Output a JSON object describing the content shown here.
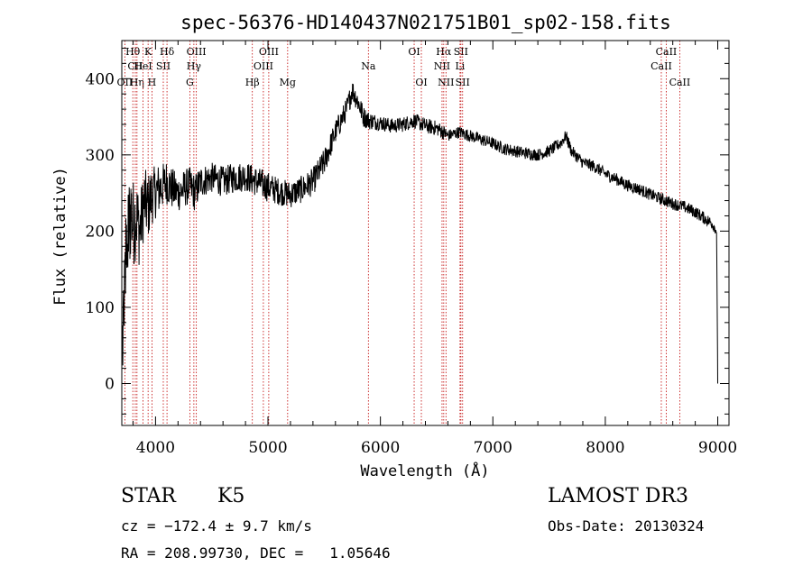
{
  "chart_data": {
    "type": "line",
    "title": "spec-56376-HD140437N021751B01_sp02-158.fits",
    "xlabel": "Wavelength (Å)",
    "ylabel": "Flux (relative)",
    "xlim": [
      3700,
      9100
    ],
    "ylim": [
      -55,
      450
    ],
    "xticks": [
      4000,
      5000,
      6000,
      7000,
      8000,
      9000
    ],
    "yticks": [
      0,
      100,
      200,
      300,
      400
    ],
    "spectrum": {
      "x": [
        3700,
        3720,
        3740,
        3760,
        3780,
        3800,
        3830,
        3860,
        3900,
        3930,
        3960,
        3990,
        4030,
        4070,
        4100,
        4150,
        4200,
        4250,
        4300,
        4350,
        4400,
        4500,
        4600,
        4700,
        4800,
        4900,
        5000,
        5100,
        5200,
        5300,
        5400,
        5500,
        5600,
        5700,
        5750,
        5800,
        5850,
        5900,
        6000,
        6100,
        6200,
        6300,
        6400,
        6500,
        6560,
        6600,
        6700,
        6800,
        6900,
        7000,
        7100,
        7200,
        7300,
        7400,
        7500,
        7600,
        7650,
        7700,
        7800,
        7900,
        8000,
        8100,
        8200,
        8300,
        8400,
        8500,
        8600,
        8700,
        8800,
        8900,
        8950,
        8990,
        9000
      ],
      "y": [
        30,
        110,
        170,
        200,
        230,
        210,
        220,
        200,
        240,
        230,
        245,
        250,
        255,
        260,
        265,
        255,
        250,
        255,
        260,
        250,
        265,
        270,
        265,
        270,
        272,
        265,
        258,
        252,
        248,
        255,
        265,
        290,
        330,
        360,
        385,
        370,
        350,
        345,
        342,
        338,
        340,
        345,
        338,
        335,
        330,
        325,
        330,
        325,
        320,
        315,
        308,
        305,
        302,
        300,
        305,
        315,
        325,
        305,
        290,
        285,
        275,
        268,
        260,
        255,
        248,
        242,
        236,
        232,
        225,
        215,
        210,
        200,
        0
      ],
      "noise": [
        60,
        70,
        70,
        70,
        70,
        60,
        55,
        50,
        45,
        45,
        40,
        35,
        35,
        30,
        30,
        28,
        25,
        25,
        25,
        25,
        22,
        20,
        20,
        20,
        20,
        20,
        20,
        18,
        18,
        18,
        18,
        18,
        16,
        15,
        15,
        15,
        14,
        12,
        10,
        10,
        10,
        10,
        10,
        10,
        10,
        8,
        8,
        8,
        8,
        8,
        8,
        8,
        8,
        8,
        8,
        8,
        8,
        8,
        8,
        8,
        8,
        8,
        8,
        8,
        8,
        8,
        8,
        8,
        8,
        8,
        8,
        6,
        0
      ]
    },
    "line_markers": [
      {
        "label": "Hθ",
        "wavelength": 3798,
        "row": 1
      },
      {
        "label": "CII",
        "wavelength": 3820,
        "row": 2
      },
      {
        "label": "OII",
        "wavelength": 3727,
        "row": 3
      },
      {
        "label": "Hη",
        "wavelength": 3835,
        "row": 3
      },
      {
        "label": "K",
        "wavelength": 3934,
        "row": 1
      },
      {
        "label": "HeI",
        "wavelength": 3889,
        "row": 2
      },
      {
        "label": "SII",
        "wavelength": 4069,
        "row": 2
      },
      {
        "label": "H",
        "wavelength": 3968,
        "row": 3
      },
      {
        "label": "Hδ",
        "wavelength": 4102,
        "row": 1
      },
      {
        "label": "OIII",
        "wavelength": 4363,
        "row": 1
      },
      {
        "label": "Hγ",
        "wavelength": 4341,
        "row": 2
      },
      {
        "label": "G",
        "wavelength": 4305,
        "row": 3
      },
      {
        "label": "Hβ",
        "wavelength": 4861,
        "row": 3
      },
      {
        "label": "OIII",
        "wavelength": 5007,
        "row": 1
      },
      {
        "label": "OIII",
        "wavelength": 4959,
        "row": 2
      },
      {
        "label": "Mg",
        "wavelength": 5175,
        "row": 3
      },
      {
        "label": "Na",
        "wavelength": 5893,
        "row": 2
      },
      {
        "label": "OI",
        "wavelength": 6300,
        "row": 1
      },
      {
        "label": "OI",
        "wavelength": 6364,
        "row": 3
      },
      {
        "label": "Hα",
        "wavelength": 6563,
        "row": 1
      },
      {
        "label": "SII",
        "wavelength": 6716,
        "row": 1
      },
      {
        "label": "NII",
        "wavelength": 6548,
        "row": 2
      },
      {
        "label": "Li",
        "wavelength": 6708,
        "row": 2
      },
      {
        "label": "NII",
        "wavelength": 6583,
        "row": 3
      },
      {
        "label": "SII",
        "wavelength": 6731,
        "row": 3
      },
      {
        "label": "CaII",
        "wavelength": 8542,
        "row": 1
      },
      {
        "label": "CaII",
        "wavelength": 8498,
        "row": 2
      },
      {
        "label": "CaII",
        "wavelength": 8662,
        "row": 3
      }
    ],
    "colors": {
      "marker": "#c00000",
      "spectrum": "#000000",
      "axis": "#000000"
    }
  },
  "info": {
    "class": "STAR",
    "subclass": "K5",
    "survey": "LAMOST DR3",
    "cz": "cz = −172.4 ± 9.7 km/s",
    "obs_date": "Obs-Date: 20130324",
    "coords": "RA = 208.99730, DEC =   1.05646"
  }
}
